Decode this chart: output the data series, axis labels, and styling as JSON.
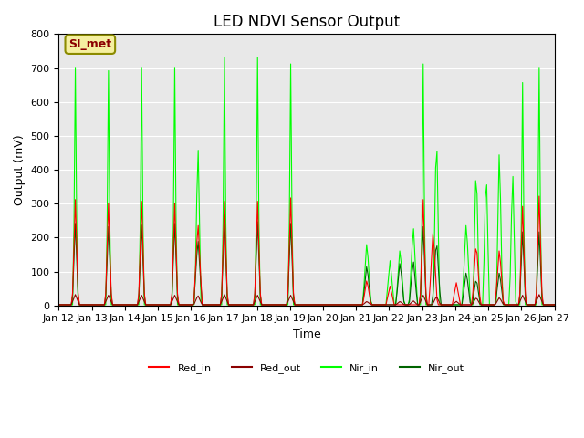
{
  "title": "LED NDVI Sensor Output",
  "xlabel": "Time",
  "ylabel": "Output (mV)",
  "ylim": [
    0,
    800
  ],
  "xlim": [
    0,
    15
  ],
  "bg_color": "#e8e8e8",
  "annotation_text": "SI_met",
  "annotation_bg": "#f5f0a0",
  "annotation_border": "#8b8b00",
  "colors": {
    "Red_in": "#ff0000",
    "Red_out": "#8b0000",
    "Nir_in": "#00ff00",
    "Nir_out": "#006400"
  },
  "tick_labels": [
    "Jan 12",
    "Jan 13",
    "Jan 14",
    "Jan 15",
    "Jan 16",
    "Jan 17",
    "Jan 18",
    "Jan 19",
    "Jan 20",
    "Jan 21",
    "Jan 22",
    "Jan 23",
    "Jan 24",
    "Jan 25",
    "Jan 26",
    "Jan 27"
  ]
}
